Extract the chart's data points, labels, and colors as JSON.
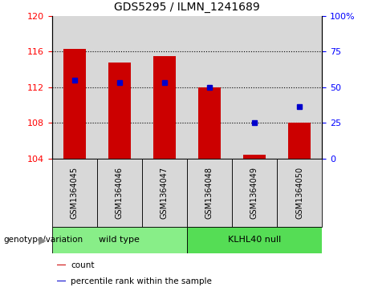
{
  "title": "GDS5295 / ILMN_1241689",
  "categories": [
    "GSM1364045",
    "GSM1364046",
    "GSM1364047",
    "GSM1364048",
    "GSM1364049",
    "GSM1364050"
  ],
  "red_values": [
    116.3,
    114.8,
    115.5,
    112.0,
    104.4,
    108.0
  ],
  "blue_values": [
    112.8,
    112.5,
    112.5,
    112.0,
    108.0,
    109.8
  ],
  "base": 104,
  "ylim_left": [
    104,
    120
  ],
  "ylim_right": [
    0,
    100
  ],
  "left_ticks": [
    104,
    108,
    112,
    116,
    120
  ],
  "right_ticks": [
    0,
    25,
    50,
    75,
    100
  ],
  "right_tick_labels": [
    "0",
    "25",
    "50",
    "75",
    "100%"
  ],
  "bar_color": "#cc0000",
  "dot_color": "#0000cc",
  "col_bg_color": "#d8d8d8",
  "groups": [
    {
      "label": "wild type",
      "indices": [
        0,
        1,
        2
      ],
      "color": "#88ee88"
    },
    {
      "label": "KLHL40 null",
      "indices": [
        3,
        4,
        5
      ],
      "color": "#55dd55"
    }
  ],
  "genotype_label": "genotype/variation",
  "legend_items": [
    {
      "color": "#cc0000",
      "label": "count"
    },
    {
      "color": "#0000cc",
      "label": "percentile rank within the sample"
    }
  ],
  "dotted_lines": [
    108,
    112,
    116
  ],
  "bar_width": 0.5
}
